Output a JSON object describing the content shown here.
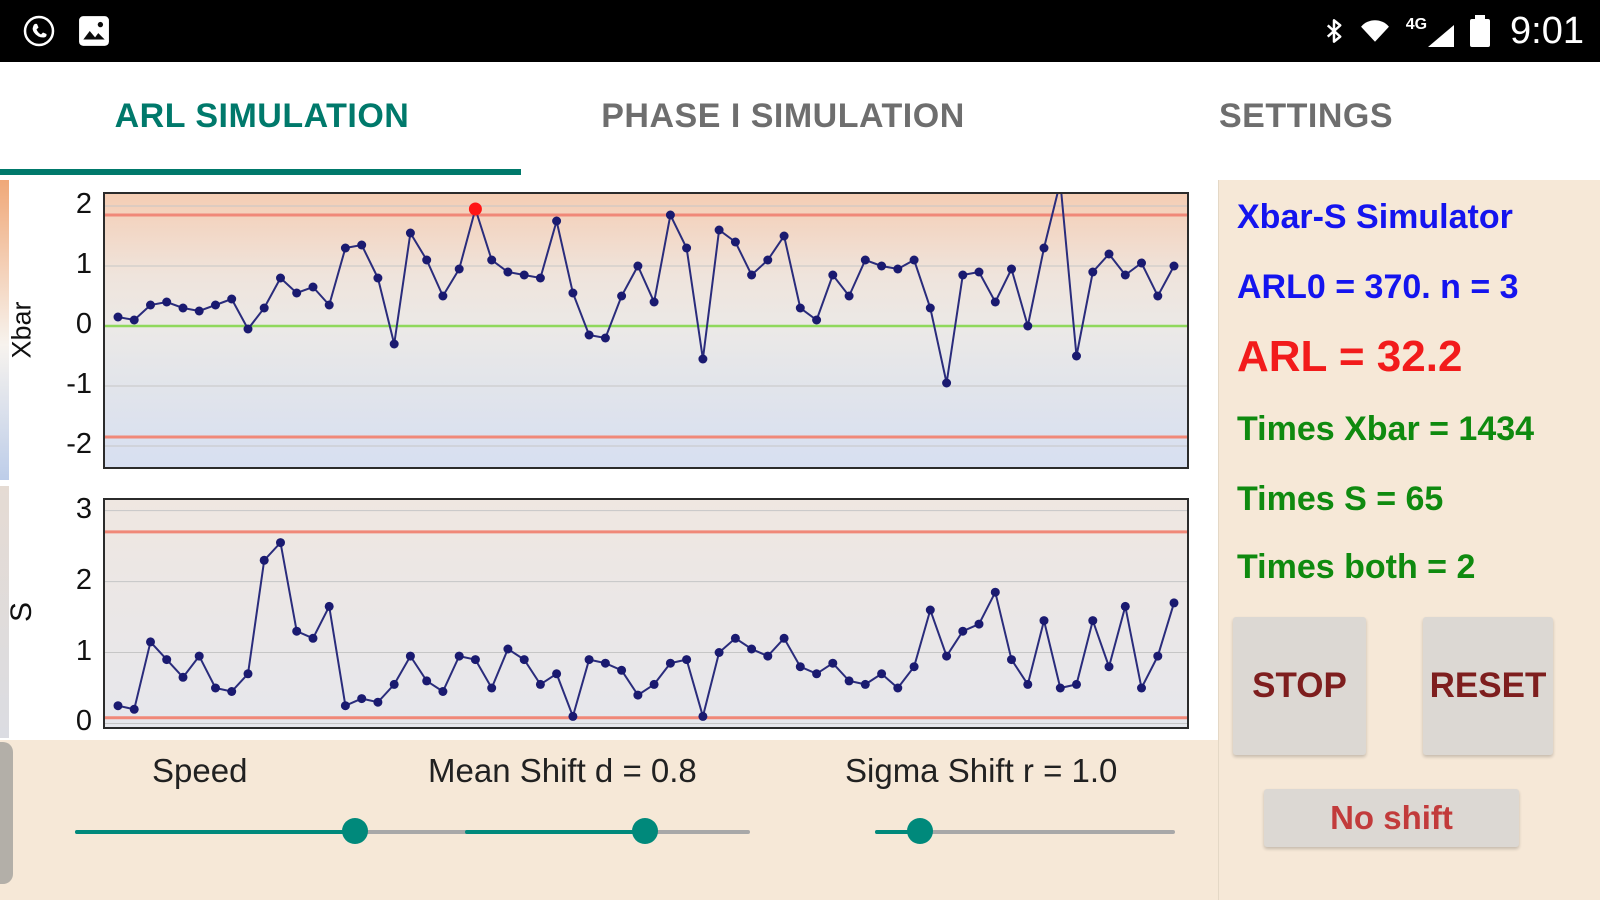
{
  "status_bar": {
    "time": "9:01",
    "network_label": "4G",
    "icons": [
      "whatsapp-icon",
      "gallery-icon",
      "bluetooth-icon",
      "wifi-icon",
      "signal-strength-icon",
      "battery-icon"
    ]
  },
  "tabs": [
    {
      "label": "ARL SIMULATION",
      "active": true
    },
    {
      "label": "PHASE I SIMULATION",
      "active": false
    },
    {
      "label": "SETTINGS",
      "active": false
    }
  ],
  "info_panel": {
    "title": "Xbar-S Simulator",
    "arl0": "ARL0 = 370. n = 3",
    "arl": "ARL = 32.2",
    "times_xbar": "Times Xbar = 1434",
    "times_s": "Times S = 65",
    "times_both": "Times both = 2",
    "stop_label": "STOP",
    "reset_label": "RESET",
    "no_shift_label": "No shift"
  },
  "controls": {
    "speed_label": "Speed",
    "mean_shift_label": "Mean Shift d = 0.8",
    "sigma_shift_label": "Sigma Shift r = 1.0",
    "speed_pct": 63,
    "mean_shift_pct": 63,
    "sigma_shift_pct": 15
  },
  "colors": {
    "accent": "#00796B",
    "control_limit": "#F08878",
    "center_line": "#8FD85C",
    "series": "#2A2C7C",
    "point": "#1A1A70",
    "out_point": "#FF1414",
    "grid": "#C6C6C6",
    "title_blue": "#1414EE",
    "value_red": "#F21B1B",
    "value_green": "#0F8A0F",
    "button_text_red": "#7E1E1E"
  },
  "chart_data": [
    {
      "type": "line",
      "name": "Xbar control chart",
      "ylabel": "Xbar",
      "ylim": [
        -2.35,
        2.2
      ],
      "yticks": [
        2,
        1,
        0,
        -1,
        -2
      ],
      "center_line": 0,
      "ucl": 1.85,
      "lcl": -1.85,
      "grid": true,
      "values": [
        0.15,
        0.1,
        0.35,
        0.4,
        0.3,
        0.25,
        0.35,
        0.45,
        -0.05,
        0.3,
        0.8,
        0.55,
        0.65,
        0.35,
        1.3,
        1.35,
        0.8,
        -0.3,
        1.55,
        1.1,
        0.5,
        0.95,
        1.95,
        1.1,
        0.9,
        0.85,
        0.8,
        1.75,
        0.55,
        -0.15,
        -0.2,
        0.5,
        1.0,
        0.4,
        1.85,
        1.3,
        -0.55,
        1.6,
        1.4,
        0.85,
        1.1,
        1.5,
        0.3,
        0.1,
        0.85,
        0.5,
        1.1,
        1.0,
        0.95,
        1.1,
        0.3,
        -0.95,
        0.85,
        0.9,
        0.4,
        0.95,
        0.0,
        1.3,
        2.4,
        -0.5,
        0.9,
        1.2,
        0.85,
        1.05,
        0.5,
        1.0
      ],
      "out_indices": [
        22
      ]
    },
    {
      "type": "line",
      "name": "S control chart",
      "ylabel": "S",
      "ylim": [
        -0.05,
        3.15
      ],
      "yticks": [
        3,
        2,
        1,
        0
      ],
      "center_line": null,
      "ucl": 2.7,
      "lcl": 0.08,
      "grid": true,
      "values": [
        0.25,
        0.2,
        1.15,
        0.9,
        0.65,
        0.95,
        0.5,
        0.45,
        0.7,
        2.3,
        2.55,
        1.3,
        1.2,
        1.65,
        0.25,
        0.35,
        0.3,
        0.55,
        0.95,
        0.6,
        0.45,
        0.95,
        0.9,
        0.5,
        1.05,
        0.9,
        0.55,
        0.7,
        0.1,
        0.9,
        0.85,
        0.75,
        0.4,
        0.55,
        0.85,
        0.9,
        0.1,
        1.0,
        1.2,
        1.05,
        0.95,
        1.2,
        0.8,
        0.7,
        0.85,
        0.6,
        0.55,
        0.7,
        0.5,
        0.8,
        1.6,
        0.95,
        1.3,
        1.4,
        1.85,
        0.9,
        0.55,
        1.45,
        0.5,
        0.55,
        1.45,
        0.8,
        1.65,
        0.5,
        0.95,
        1.7
      ],
      "out_indices": []
    }
  ]
}
